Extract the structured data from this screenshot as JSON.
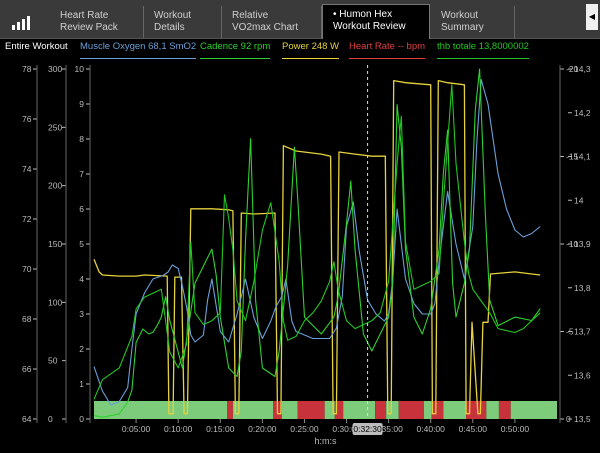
{
  "tabs": [
    {
      "label": "Heart Rate\nReview Pack"
    },
    {
      "label": "Workout\nDetails"
    },
    {
      "label": "Relative\nVO2max Chart"
    },
    {
      "label": "• Humon Hex\nWorkout Review"
    },
    {
      "label": "Workout\nSummary"
    }
  ],
  "icons": {
    "signal": "signal-bars-icon",
    "scroll": "chevron-left-icon"
  },
  "legend": {
    "entire": "Entire Workout",
    "muscle": "Muscle Oxygen  68,1 SmO2",
    "cadence": "Cadence  92 rpm",
    "power": "Power  248 W",
    "hr": "Heart Rate  -- bpm",
    "thb": "thb totale  13,8000002"
  },
  "colors": {
    "muscle": "#6a9fd8",
    "cadence": "#2fd12f",
    "power": "#e6d23c",
    "hr": "#e04040",
    "thb": "#22c522",
    "zone_green": "#7ccc7c",
    "zone_red": "#c8323a"
  },
  "axes": {
    "hr_ticks": [
      "64",
      "66",
      "68",
      "70",
      "72",
      "74",
      "76",
      "78"
    ],
    "power_ticks": [
      "0",
      "50",
      "100",
      "150",
      "200",
      "250",
      "300"
    ],
    "muscle_ticks": [
      "0",
      "1",
      "2",
      "3",
      "4",
      "5",
      "6",
      "7",
      "8",
      "9",
      "10"
    ],
    "cadence_ticks": [
      "0",
      "-5",
      "-10",
      "-15",
      "-20"
    ],
    "thb_ticks": [
      "13,5",
      "13,6",
      "13,7",
      "13,8",
      "13,9",
      "14",
      "14,1",
      "14,2",
      "14,3"
    ],
    "x_ticks": [
      "0:05:00",
      "0:10:00",
      "0:15:00",
      "0:20:00",
      "0:25:00",
      "0:30:00",
      "0:35:00",
      "0:40:00",
      "0:45:00",
      "0:50:00"
    ],
    "x_label": "h:m:s",
    "cursor_time": "0:32:30"
  },
  "chart_data": {
    "type": "line",
    "x_unit": "minutes",
    "x_range": [
      0,
      55
    ],
    "cursor_minutes": 32.5,
    "series": [
      {
        "name": "Power",
        "axis": "power",
        "range": [
          0,
          333
        ],
        "points": [
          [
            0,
            152
          ],
          [
            0.6,
            140
          ],
          [
            1,
            137
          ],
          [
            3,
            136
          ],
          [
            5,
            136
          ],
          [
            6,
            137
          ],
          [
            8.7,
            136
          ],
          [
            8.9,
            5
          ],
          [
            9.4,
            5
          ],
          [
            9.6,
            135
          ],
          [
            10.4,
            135
          ],
          [
            10.7,
            5
          ],
          [
            11.1,
            5
          ],
          [
            11.5,
            200
          ],
          [
            14,
            200
          ],
          [
            16,
            199
          ],
          [
            16.5,
            198
          ],
          [
            16.8,
            5
          ],
          [
            17.2,
            5
          ],
          [
            17.5,
            196
          ],
          [
            19,
            195
          ],
          [
            21.5,
            196
          ],
          [
            21.8,
            5
          ],
          [
            22.2,
            5
          ],
          [
            22.5,
            260
          ],
          [
            24,
            255
          ],
          [
            27,
            252
          ],
          [
            28.1,
            250
          ],
          [
            28.4,
            5
          ],
          [
            28.8,
            5
          ],
          [
            29.1,
            254
          ],
          [
            31,
            252
          ],
          [
            33,
            250
          ],
          [
            34.6,
            250
          ],
          [
            34.9,
            5
          ],
          [
            35.3,
            5
          ],
          [
            35.6,
            322
          ],
          [
            37,
            320
          ],
          [
            40,
            318
          ],
          [
            40.2,
            5
          ],
          [
            40.6,
            5
          ],
          [
            40.9,
            322
          ],
          [
            42,
            320
          ],
          [
            44,
            318
          ],
          [
            44.2,
            5
          ],
          [
            44.6,
            5
          ],
          [
            44.9,
            92
          ],
          [
            45.6,
            5
          ],
          [
            45.9,
            5
          ],
          [
            46.2,
            92
          ],
          [
            46.8,
            92
          ],
          [
            47.1,
            138
          ],
          [
            50,
            140
          ],
          [
            52,
            138
          ],
          [
            53,
            137
          ]
        ]
      },
      {
        "name": "Muscle Oxygen",
        "axis": "muscle",
        "range": [
          0,
          10
        ],
        "points": [
          [
            0,
            1.5
          ],
          [
            1,
            0.8
          ],
          [
            2,
            0.4
          ],
          [
            3,
            0.5
          ],
          [
            4,
            0.9
          ],
          [
            4.5,
            2
          ],
          [
            5,
            3
          ],
          [
            6,
            3.6
          ],
          [
            7,
            4
          ],
          [
            8.2,
            4.1
          ],
          [
            8.8,
            4.2
          ],
          [
            9.3,
            4.4
          ],
          [
            10,
            4.3
          ],
          [
            10.5,
            3.8
          ],
          [
            11,
            3.2
          ],
          [
            11.5,
            2.4
          ],
          [
            12,
            2.2
          ],
          [
            13,
            2.4
          ],
          [
            13.5,
            3.4
          ],
          [
            14,
            4
          ],
          [
            15,
            2.5
          ],
          [
            16,
            2.2
          ],
          [
            17,
            3
          ],
          [
            17.5,
            3.5
          ],
          [
            18,
            4
          ],
          [
            19,
            2.9
          ],
          [
            20,
            2.3
          ],
          [
            21,
            2.8
          ],
          [
            21.6,
            3.2
          ],
          [
            22.3,
            3.5
          ],
          [
            22.8,
            4
          ],
          [
            23.5,
            2.8
          ],
          [
            24,
            2.5
          ],
          [
            26,
            2.3
          ],
          [
            28,
            2.3
          ],
          [
            28.8,
            2.6
          ],
          [
            29.5,
            3.5
          ],
          [
            30,
            5.5
          ],
          [
            30.8,
            6.2
          ],
          [
            31.5,
            4.8
          ],
          [
            32.5,
            3.4
          ],
          [
            33.5,
            3
          ],
          [
            34.5,
            2.8
          ],
          [
            35,
            3
          ],
          [
            35.5,
            4
          ],
          [
            36,
            6
          ],
          [
            37,
            4
          ],
          [
            38,
            3.3
          ],
          [
            39,
            3
          ],
          [
            40,
            3
          ],
          [
            40.5,
            3.3
          ],
          [
            41,
            4.5
          ],
          [
            42,
            6.5
          ],
          [
            43,
            5
          ],
          [
            44,
            4
          ],
          [
            45,
            5.5
          ],
          [
            45.5,
            8
          ],
          [
            46,
            9.7
          ],
          [
            46.8,
            9
          ],
          [
            48,
            7
          ],
          [
            49,
            6
          ],
          [
            50,
            5.4
          ],
          [
            51,
            5.2
          ],
          [
            52,
            5.3
          ],
          [
            53,
            5.5
          ]
        ]
      },
      {
        "name": "Cadence",
        "axis": "cadence",
        "range": [
          0,
          20.6
        ],
        "points": [
          [
            0,
            0.2
          ],
          [
            1,
            0.1
          ],
          [
            3,
            0.3
          ],
          [
            4,
            1
          ],
          [
            4.5,
            1.7
          ],
          [
            5,
            4.5
          ],
          [
            5.8,
            5.3
          ],
          [
            6.5,
            5
          ],
          [
            7,
            5.1
          ],
          [
            7.5,
            5.5
          ],
          [
            8,
            6
          ],
          [
            8.5,
            7.2
          ],
          [
            9,
            5.8
          ],
          [
            10.5,
            3
          ],
          [
            12,
            8
          ],
          [
            13.5,
            9.5
          ],
          [
            14,
            10
          ],
          [
            14.5,
            8.5
          ],
          [
            15,
            6
          ],
          [
            16,
            3
          ],
          [
            17,
            2.5
          ],
          [
            17.5,
            4
          ],
          [
            18,
            10.5
          ],
          [
            18.6,
            16.5
          ],
          [
            19.2,
            7
          ],
          [
            20,
            3
          ],
          [
            21.5,
            2.5
          ],
          [
            22,
            4
          ],
          [
            23,
            9
          ],
          [
            23.8,
            16
          ],
          [
            24.2,
            13
          ],
          [
            25,
            6
          ],
          [
            27,
            5
          ],
          [
            28.5,
            6
          ],
          [
            29,
            7.2
          ],
          [
            30,
            11.5
          ],
          [
            30.5,
            14
          ],
          [
            31,
            10
          ],
          [
            32,
            5
          ],
          [
            33,
            4
          ],
          [
            34,
            5
          ],
          [
            35,
            6
          ],
          [
            35.5,
            8
          ],
          [
            36,
            18.5
          ],
          [
            36.5,
            16
          ],
          [
            37,
            10
          ],
          [
            38,
            6
          ],
          [
            39,
            5
          ],
          [
            40,
            6.5
          ],
          [
            41,
            10
          ],
          [
            41.5,
            14.5
          ],
          [
            42,
            17
          ],
          [
            42.6,
            8
          ],
          [
            43,
            6
          ],
          [
            44,
            8
          ],
          [
            44.6,
            10
          ],
          [
            45.3,
            18.2
          ],
          [
            45.8,
            20.6
          ],
          [
            46.5,
            12
          ],
          [
            47,
            7
          ],
          [
            48,
            5.5
          ],
          [
            50,
            6
          ],
          [
            52,
            5.8
          ],
          [
            53,
            6.5
          ]
        ]
      },
      {
        "name": "thb totale",
        "axis": "thb",
        "range": [
          13.45,
          14.34
        ],
        "points": [
          [
            0,
            13.5
          ],
          [
            1,
            13.55
          ],
          [
            3,
            13.58
          ],
          [
            4.5,
            13.66
          ],
          [
            5,
            13.73
          ],
          [
            6,
            13.76
          ],
          [
            7,
            13.77
          ],
          [
            8,
            13.78
          ],
          [
            8.5,
            13.7
          ],
          [
            9,
            13.62
          ],
          [
            10,
            13.58
          ],
          [
            11,
            13.64
          ],
          [
            11.5,
            13.9
          ],
          [
            12,
            13.72
          ],
          [
            13,
            13.69
          ],
          [
            14,
            13.7
          ],
          [
            15,
            13.72
          ],
          [
            15.5,
            14.02
          ],
          [
            16,
            13.96
          ],
          [
            16.5,
            13.88
          ],
          [
            17,
            13.75
          ],
          [
            18,
            13.7
          ],
          [
            19,
            13.8
          ],
          [
            20,
            13.93
          ],
          [
            21,
            14
          ],
          [
            22,
            13.85
          ],
          [
            22.5,
            13.7
          ],
          [
            23,
            13.65
          ],
          [
            24,
            13.66
          ],
          [
            25,
            13.7
          ],
          [
            26,
            13.72
          ],
          [
            27,
            13.75
          ],
          [
            28,
            13.8
          ],
          [
            28.5,
            13.85
          ],
          [
            29,
            13.78
          ],
          [
            30,
            13.7
          ],
          [
            31,
            13.68
          ],
          [
            32,
            13.69
          ],
          [
            33,
            13.7
          ],
          [
            34,
            13.72
          ],
          [
            35,
            13.8
          ],
          [
            36,
            14.1
          ],
          [
            36.5,
            14.22
          ],
          [
            37,
            13.9
          ],
          [
            38,
            13.78
          ],
          [
            40,
            13.8
          ],
          [
            41,
            13.82
          ],
          [
            41.5,
            14
          ],
          [
            42.5,
            14.3
          ],
          [
            43,
            14.1
          ],
          [
            44,
            13.9
          ],
          [
            44.5,
            13.82
          ],
          [
            45,
            13.78
          ],
          [
            46,
            13.75
          ],
          [
            47,
            13.72
          ],
          [
            48,
            13.68
          ],
          [
            50,
            13.67
          ],
          [
            51,
            13.68
          ],
          [
            52,
            13.7
          ],
          [
            53,
            13.72
          ]
        ]
      }
    ],
    "heart_rate_zones": [
      {
        "start": 0,
        "end": 15.8,
        "zone": "green"
      },
      {
        "start": 15.8,
        "end": 16.5,
        "zone": "red"
      },
      {
        "start": 16.5,
        "end": 21.3,
        "zone": "green"
      },
      {
        "start": 21.3,
        "end": 22.3,
        "zone": "red"
      },
      {
        "start": 22.3,
        "end": 24.2,
        "zone": "green"
      },
      {
        "start": 24.2,
        "end": 27.4,
        "zone": "red"
      },
      {
        "start": 27.4,
        "end": 28.6,
        "zone": "green"
      },
      {
        "start": 28.6,
        "end": 29.6,
        "zone": "red"
      },
      {
        "start": 29.6,
        "end": 33.4,
        "zone": "green"
      },
      {
        "start": 33.4,
        "end": 34.7,
        "zone": "red"
      },
      {
        "start": 34.7,
        "end": 36.2,
        "zone": "green"
      },
      {
        "start": 36.2,
        "end": 39.2,
        "zone": "red"
      },
      {
        "start": 39.2,
        "end": 40.1,
        "zone": "green"
      },
      {
        "start": 40.1,
        "end": 41.5,
        "zone": "red"
      },
      {
        "start": 41.5,
        "end": 44.2,
        "zone": "green"
      },
      {
        "start": 44.2,
        "end": 46.6,
        "zone": "red"
      },
      {
        "start": 46.6,
        "end": 48.1,
        "zone": "green"
      },
      {
        "start": 48.1,
        "end": 49.5,
        "zone": "red"
      },
      {
        "start": 49.5,
        "end": 55,
        "zone": "green"
      }
    ]
  }
}
